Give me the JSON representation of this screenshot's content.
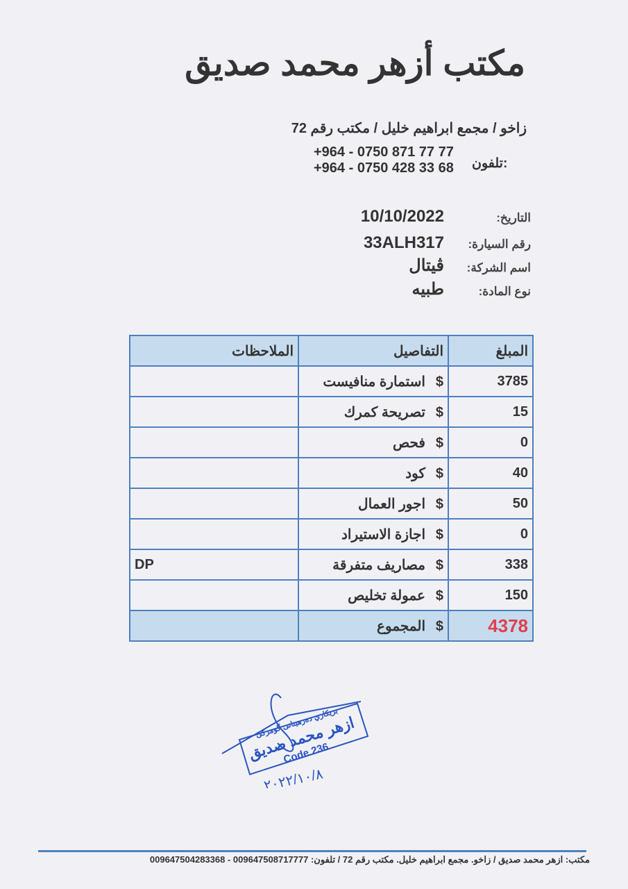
{
  "header": {
    "title": "مكتب أزهر محمد صديق",
    "address": "زاخو / مجمع ابراهيم خليل / مكتب رقم 72",
    "phone_label": "تلفون:",
    "phones": [
      "+964 - 0750 871 77 77",
      "+964 - 0750 428 33 68"
    ]
  },
  "info": [
    {
      "label": "التاريخ:",
      "value": "10/10/2022"
    },
    {
      "label": "رقم السيارة:",
      "value": "33ALH317"
    },
    {
      "label": "اسم الشركة:",
      "value": "ڤيتال"
    },
    {
      "label": "نوع المادة:",
      "value": "طبيه"
    }
  ],
  "table": {
    "headers": {
      "amount": "المبلغ",
      "details": "التفاصيل",
      "notes": "الملاحظات"
    },
    "currency": "$",
    "rows": [
      {
        "amount": "3785",
        "details": "استمارة منافيست",
        "notes": ""
      },
      {
        "amount": "15",
        "details": "تصريحة كمرك",
        "notes": ""
      },
      {
        "amount": "0",
        "details": "فحص",
        "notes": ""
      },
      {
        "amount": "40",
        "details": "كود",
        "notes": ""
      },
      {
        "amount": "50",
        "details": "اجور العمال",
        "notes": ""
      },
      {
        "amount": "0",
        "details": "اجازة الاستيراد",
        "notes": ""
      },
      {
        "amount": "338",
        "details": "مصاريف متفرقة",
        "notes": "DP"
      },
      {
        "amount": "150",
        "details": "عمولة تخليص",
        "notes": ""
      }
    ],
    "total_label": "المجموع",
    "total": "4378",
    "total_color": "#e04050",
    "border_color": "#4f7fbf",
    "header_bg": "#c6dcee"
  },
  "stamp": {
    "line1": "بريكاري دەرهينانى گومركى",
    "name": "ازهر محمد صديق",
    "code": "Code 236",
    "date": "٢٠٢٢/١٠/٨",
    "color": "#2a55c0"
  },
  "footer": "مكتب: ازهر محمد صديق / زاخو. مجمع ابراهيم خليل. مكتب رقم 72 / تلفون: 009647508717777 - 009647504283368"
}
